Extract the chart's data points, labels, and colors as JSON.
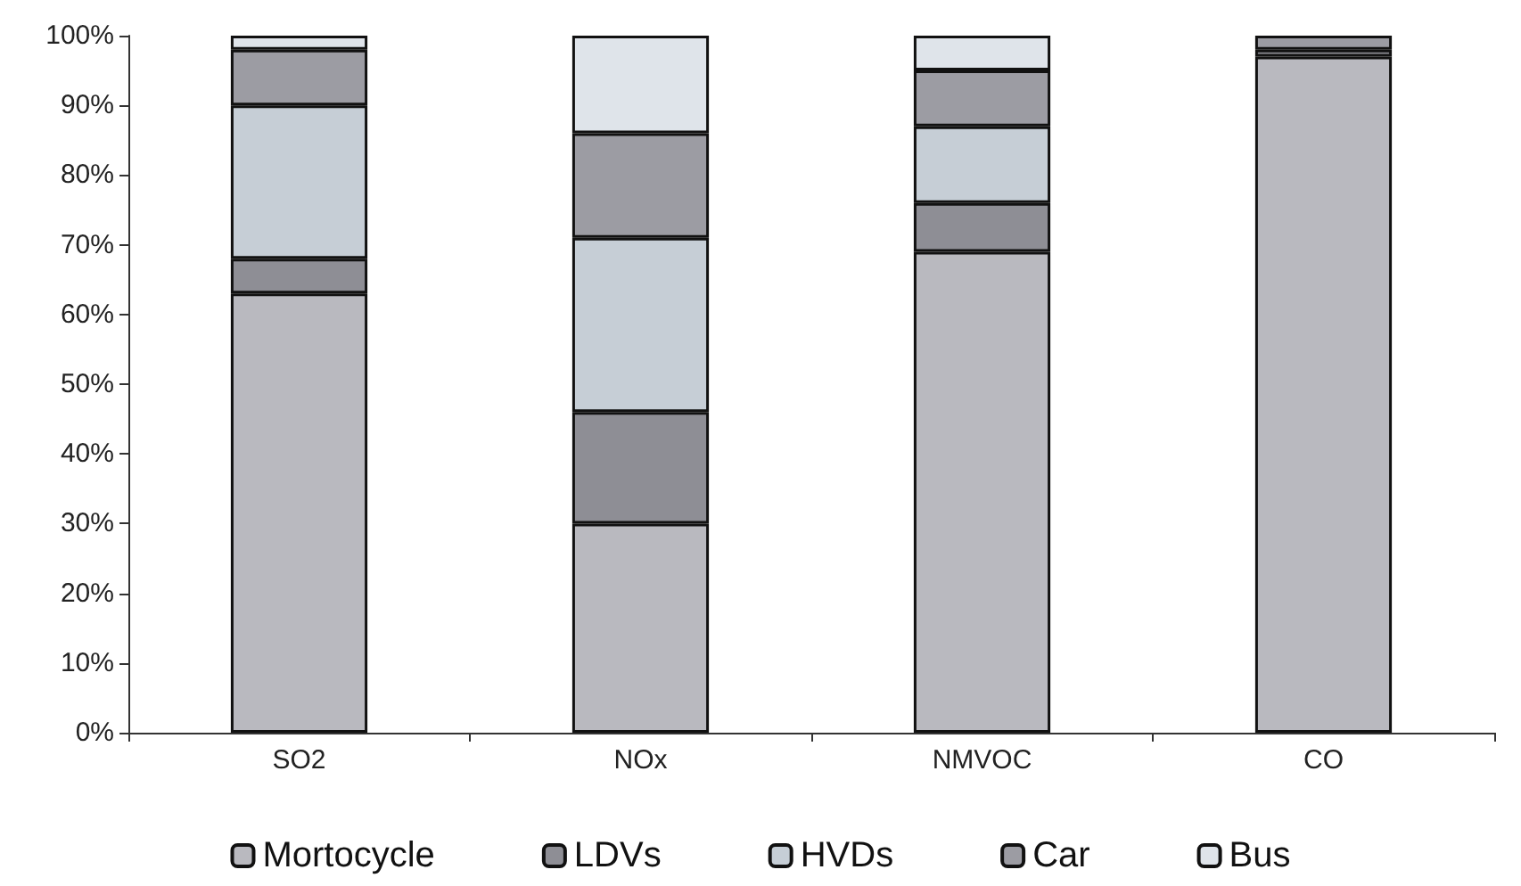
{
  "chart_data": {
    "type": "bar",
    "stacked": true,
    "categories": [
      "SO2",
      "NOx",
      "NMVOC",
      "CO"
    ],
    "series": [
      {
        "name": "Mortocycle",
        "color": "#b9b9bf",
        "values": [
          63,
          30,
          69,
          97
        ]
      },
      {
        "name": "LDVs",
        "color": "#8e8e95",
        "values": [
          5,
          16,
          7,
          1
        ]
      },
      {
        "name": "HVDs",
        "color": "#c6ced6",
        "values": [
          22,
          25,
          11,
          0
        ]
      },
      {
        "name": "Car",
        "color": "#9c9ca3",
        "values": [
          8,
          15,
          8,
          2
        ]
      },
      {
        "name": "Bus",
        "color": "#dfe4ea",
        "values": [
          2,
          14,
          5,
          0
        ]
      }
    ],
    "ylim": [
      0,
      100
    ],
    "yticks": [
      {
        "value": 0,
        "label": "0%"
      },
      {
        "value": 10,
        "label": "10%"
      },
      {
        "value": 20,
        "label": "20%"
      },
      {
        "value": 30,
        "label": "30%"
      },
      {
        "value": 40,
        "label": "40%"
      },
      {
        "value": 50,
        "label": "50%"
      },
      {
        "value": 60,
        "label": "60%"
      },
      {
        "value": 70,
        "label": "70%"
      },
      {
        "value": 80,
        "label": "80%"
      },
      {
        "value": 90,
        "label": "90%"
      },
      {
        "value": 100,
        "label": "100%"
      }
    ],
    "grid": false,
    "legend": "bottom"
  }
}
